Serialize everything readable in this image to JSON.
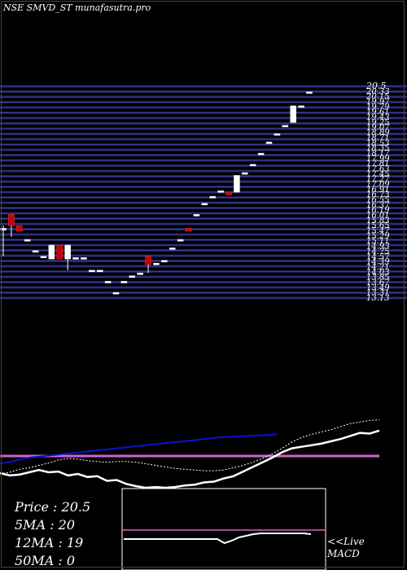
{
  "watermark": "NSE SMVD_ST munafasutra.pro",
  "stats": {
    "price": "Price   : 20.5",
    "ma5": "5MA : 20",
    "ma12": "12MA : 19",
    "ma50": "50MA : 0"
  },
  "macd_tag": {
    "line1": "<<Live",
    "line2": "MACD"
  },
  "colors": {
    "background": "#000000",
    "grid_band": "#20205a",
    "grid_line": "#3a3aa0",
    "bull_candle": "#ffffff",
    "bear_candle": "#cc0000",
    "price_line": "#ffffff",
    "ma_line": "#1010cc",
    "level_line": "#cc66cc",
    "macd_line": "#ffffff",
    "macd_signal": "#cc66cc"
  },
  "chart_data": [
    {
      "type": "candlestick",
      "title": "",
      "ylim": [
        13.1,
        20.7
      ],
      "price_labels": [
        "20.5",
        "20.33",
        "20.15",
        "19.97",
        "19.79",
        "19.61",
        "19.43",
        "19.25",
        "19.07",
        "18.89",
        "18.71",
        "18.53",
        "18.35",
        "18.17",
        "17.99",
        "17.81",
        "17.63",
        "17.45",
        "17.27",
        "17.09",
        "16.91",
        "16.73",
        "16.55",
        "16.37",
        "16.19",
        "16.01",
        "15.83",
        "15.65",
        "15.47",
        "15.29",
        "15.11",
        "14.93",
        "14.75",
        "14.57",
        "14.39",
        "14.21",
        "14.03",
        "13.85",
        "13.67",
        "13.49",
        "13.31",
        "13.13"
      ],
      "candles": [
        {
          "o": 15.6,
          "h": 15.7,
          "l": 14.6,
          "c": 15.6
        },
        {
          "o": 16.1,
          "h": 16.1,
          "l": 15.3,
          "c": 15.7
        },
        {
          "o": 15.7,
          "h": 15.7,
          "l": 15.5,
          "c": 15.5
        },
        {
          "o": 15.2,
          "h": 15.2,
          "l": 15.2,
          "c": 15.2
        },
        {
          "o": 14.8,
          "h": 14.8,
          "l": 14.8,
          "c": 14.8
        },
        {
          "o": 14.6,
          "h": 14.6,
          "l": 14.6,
          "c": 14.6
        },
        {
          "o": 14.5,
          "h": 15.0,
          "l": 14.5,
          "c": 15.0
        },
        {
          "o": 15.0,
          "h": 15.0,
          "l": 14.5,
          "c": 14.5
        },
        {
          "o": 14.5,
          "h": 15.0,
          "l": 14.1,
          "c": 15.0
        },
        {
          "o": 14.55,
          "h": 14.55,
          "l": 14.55,
          "c": 14.55
        },
        {
          "o": 14.55,
          "h": 14.55,
          "l": 14.55,
          "c": 14.55
        },
        {
          "o": 14.1,
          "h": 14.1,
          "l": 14.1,
          "c": 14.1
        },
        {
          "o": 14.1,
          "h": 14.1,
          "l": 14.1,
          "c": 14.1
        },
        {
          "o": 13.7,
          "h": 13.7,
          "l": 13.7,
          "c": 13.7
        },
        {
          "o": 13.3,
          "h": 13.3,
          "l": 13.3,
          "c": 13.3
        },
        {
          "o": 13.7,
          "h": 13.7,
          "l": 13.7,
          "c": 13.7
        },
        {
          "o": 13.9,
          "h": 13.9,
          "l": 13.9,
          "c": 13.9
        },
        {
          "o": 14.0,
          "h": 14.0,
          "l": 14.0,
          "c": 14.0
        },
        {
          "o": 14.6,
          "h": 14.6,
          "l": 14.0,
          "c": 14.3
        },
        {
          "o": 14.35,
          "h": 14.35,
          "l": 14.35,
          "c": 14.35
        },
        {
          "o": 14.45,
          "h": 14.45,
          "l": 14.45,
          "c": 14.45
        },
        {
          "o": 14.9,
          "h": 14.9,
          "l": 14.9,
          "c": 14.9
        },
        {
          "o": 15.2,
          "h": 15.2,
          "l": 15.2,
          "c": 15.2
        },
        {
          "o": 15.6,
          "h": 15.6,
          "l": 15.5,
          "c": 15.5
        },
        {
          "o": 16.1,
          "h": 16.1,
          "l": 16.1,
          "c": 16.1
        },
        {
          "o": 16.5,
          "h": 16.5,
          "l": 16.5,
          "c": 16.5
        },
        {
          "o": 16.75,
          "h": 16.75,
          "l": 16.75,
          "c": 16.75
        },
        {
          "o": 16.95,
          "h": 16.95,
          "l": 16.95,
          "c": 16.95
        },
        {
          "o": 16.9,
          "h": 16.9,
          "l": 16.8,
          "c": 16.8
        },
        {
          "o": 16.9,
          "h": 17.5,
          "l": 16.9,
          "c": 17.5
        },
        {
          "o": 17.6,
          "h": 17.6,
          "l": 17.6,
          "c": 17.6
        },
        {
          "o": 17.9,
          "h": 17.9,
          "l": 17.9,
          "c": 17.9
        },
        {
          "o": 18.3,
          "h": 18.3,
          "l": 18.3,
          "c": 18.3
        },
        {
          "o": 18.7,
          "h": 18.7,
          "l": 18.7,
          "c": 18.7
        },
        {
          "o": 19.0,
          "h": 19.0,
          "l": 19.0,
          "c": 19.0
        },
        {
          "o": 19.3,
          "h": 19.3,
          "l": 19.3,
          "c": 19.3
        },
        {
          "o": 19.4,
          "h": 20.0,
          "l": 19.4,
          "c": 20.0
        },
        {
          "o": 20.0,
          "h": 20.0,
          "l": 20.0,
          "c": 20.0
        },
        {
          "o": 20.5,
          "h": 20.5,
          "l": 20.5,
          "c": 20.5
        }
      ]
    },
    {
      "type": "line",
      "title": "",
      "series": [
        {
          "values": [
            19,
            21,
            25,
            27,
            30,
            33,
            37,
            39,
            38,
            36,
            35,
            34,
            35,
            35,
            34,
            32,
            30,
            28,
            26,
            25,
            24,
            23,
            23,
            24,
            27,
            30,
            34,
            39,
            45,
            52,
            60,
            66,
            70,
            73,
            76,
            80,
            84,
            86,
            88,
            89
          ]
        },
        {
          "values": [
            20,
            17,
            18,
            21,
            24,
            21,
            22,
            17,
            19,
            15,
            16,
            10,
            11,
            6,
            3,
            1,
            2,
            1,
            2,
            4,
            5,
            8,
            9,
            13,
            16,
            22,
            28,
            34,
            40,
            47,
            52,
            54,
            56,
            58,
            61,
            64,
            68,
            72,
            71,
            75
          ]
        },
        {
          "values": [
            32,
            36,
            40,
            42,
            44,
            46,
            48,
            50,
            52,
            54,
            56,
            58,
            60,
            62,
            64,
            66,
            67,
            68,
            69,
            70
          ]
        }
      ]
    },
    {
      "type": "line",
      "title": "",
      "series": [
        {
          "values": [
            38,
            38,
            38,
            38,
            38,
            38,
            38,
            38,
            38,
            38,
            38,
            38,
            38,
            38,
            33,
            36,
            40,
            42,
            44,
            45,
            45,
            45,
            45,
            45,
            45,
            45,
            44
          ]
        }
      ]
    }
  ]
}
